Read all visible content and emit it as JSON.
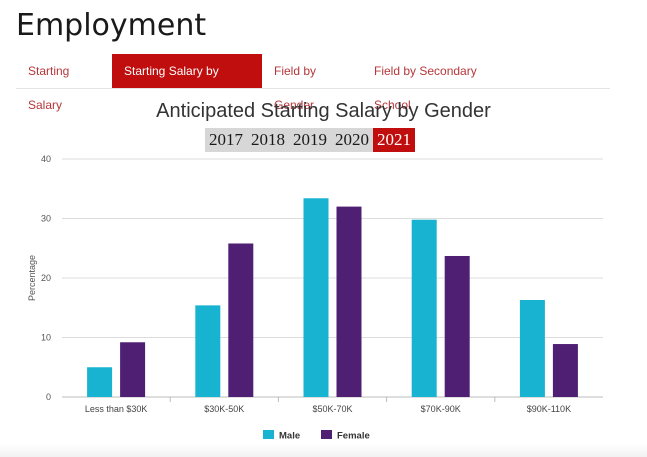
{
  "page": {
    "title": "Employment"
  },
  "tabs": [
    {
      "label": "Starting Salary",
      "active": false
    },
    {
      "label": "Starting Salary by Gender",
      "active": true
    },
    {
      "label": "Field by Gender",
      "active": false
    },
    {
      "label": "Field by Secondary School",
      "active": false
    }
  ],
  "years": [
    {
      "label": "2017",
      "active": false
    },
    {
      "label": "2018",
      "active": false
    },
    {
      "label": "2019",
      "active": false
    },
    {
      "label": "2020",
      "active": false
    },
    {
      "label": "2021",
      "active": true
    }
  ],
  "colors": {
    "male": "#17b3d1",
    "female": "#4f1f73",
    "accent": "#c00d0d"
  },
  "chart_data": {
    "type": "bar",
    "title": "Anticipated Starting Salary by Gender",
    "ylabel": "Percentage",
    "xlabel": "",
    "categories": [
      "Less than $30K",
      "$30K-50K",
      "$50K-70K",
      "$70K-90K",
      "$90K-110K"
    ],
    "series": [
      {
        "name": "Male",
        "values": [
          5.0,
          15.4,
          33.4,
          29.8,
          16.3
        ]
      },
      {
        "name": "Female",
        "values": [
          9.2,
          25.8,
          32.0,
          23.7,
          8.9
        ]
      }
    ],
    "ylim": [
      0,
      40
    ],
    "yticks": [
      0,
      10,
      20,
      30,
      40
    ],
    "grid": true,
    "legend": "bottom-center"
  }
}
